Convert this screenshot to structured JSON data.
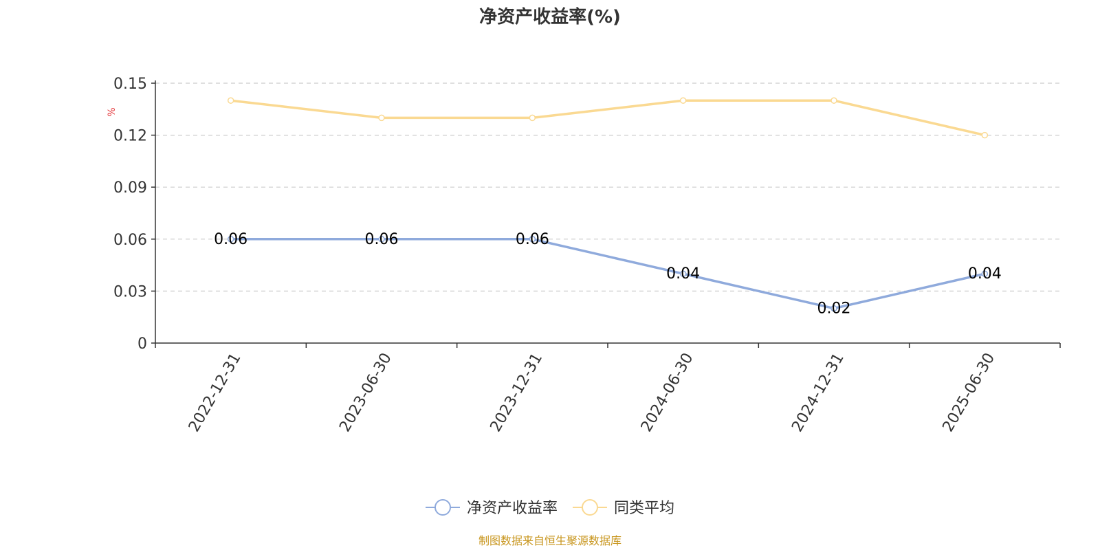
{
  "chart_data": {
    "type": "line",
    "title": "净资产收益率(%)",
    "ylabel": "%",
    "categories": [
      "2022-12-31",
      "2023-06-30",
      "2023-12-31",
      "2024-06-30",
      "2024-12-31",
      "2025-06-30"
    ],
    "series": [
      {
        "name": "净资产收益率",
        "values": [
          0.06,
          0.06,
          0.06,
          0.04,
          0.02,
          0.04
        ],
        "color": "#8faadc",
        "data_labels": true
      },
      {
        "name": "同类平均",
        "values": [
          0.14,
          0.13,
          0.13,
          0.14,
          0.14,
          0.12
        ],
        "color": "#fad992",
        "data_labels": false
      }
    ],
    "ylim": [
      0,
      0.15
    ],
    "yticks": [
      0,
      0.03,
      0.06,
      0.09,
      0.12,
      0.15
    ],
    "ytick_labels": [
      "0",
      "0.03",
      "0.06",
      "0.09",
      "0.12",
      "0.15"
    ],
    "grid": true,
    "legend_position": "bottom-center"
  },
  "source_note": "制图数据来自恒生聚源数据库",
  "colors": {
    "axis": "#333333",
    "grid": "#cccccc",
    "unit_label": "#e4393c",
    "source": "#c8961e"
  }
}
